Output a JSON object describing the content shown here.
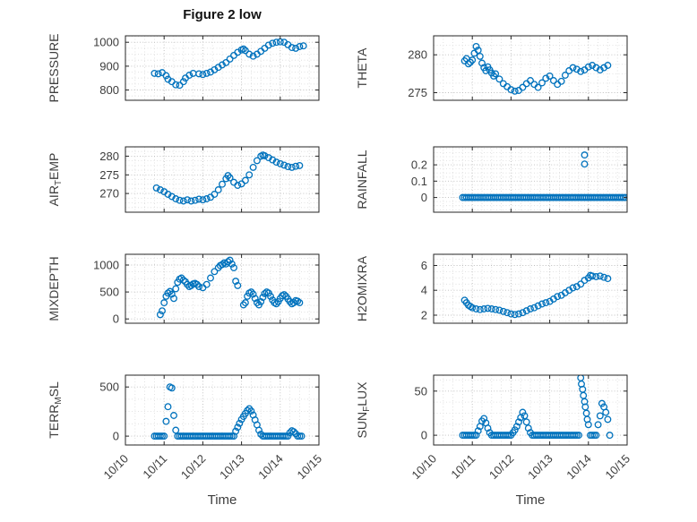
{
  "title": "Figure 2 low",
  "xlabel": "Time",
  "x_ticks": [
    0,
    1,
    2,
    3,
    4,
    5
  ],
  "x_tick_labels": [
    "10/10",
    "10/11",
    "10/12",
    "10/13",
    "10/14",
    "10/15"
  ],
  "xlim": [
    0,
    5
  ],
  "style": {
    "marker_color": "#0072BD",
    "axis_color": "#262626",
    "grid_color": "#bdbdbd",
    "minor_grid_color": "#dadada",
    "text_color": "#3d3d3d"
  },
  "chart_data": [
    {
      "name": "PRESSURE",
      "type": "scatter",
      "ylabel": [
        {
          "t": "PRESSURE"
        }
      ],
      "ylim": [
        757,
        1027
      ],
      "yticks": [
        800,
        900,
        1000
      ],
      "x": [
        0.75,
        0.85,
        0.95,
        1.05,
        1.1,
        1.2,
        1.3,
        1.4,
        1.5,
        1.55,
        1.65,
        1.75,
        1.9,
        2,
        2.1,
        2.2,
        2.3,
        2.4,
        2.5,
        2.6,
        2.7,
        2.8,
        2.9,
        3,
        3.05,
        3.1,
        3.2,
        3.3,
        3.4,
        3.5,
        3.6,
        3.7,
        3.8,
        3.9,
        4,
        4.1,
        4.2,
        4.3,
        4.4,
        4.5,
        4.6
      ],
      "y": [
        870,
        868,
        873,
        860,
        845,
        835,
        822,
        820,
        835,
        850,
        862,
        870,
        868,
        865,
        870,
        875,
        885,
        895,
        905,
        915,
        930,
        945,
        958,
        968,
        972,
        965,
        950,
        942,
        950,
        962,
        975,
        988,
        996,
        1000,
        1002,
        1000,
        990,
        978,
        975,
        982,
        985
      ]
    },
    {
      "name": "THETA",
      "type": "scatter",
      "ylabel": [
        {
          "t": "THETA"
        }
      ],
      "ylim": [
        274,
        282.5
      ],
      "yticks": [
        275,
        280
      ],
      "x": [
        0.8,
        0.85,
        0.9,
        0.95,
        1,
        1.05,
        1.1,
        1.15,
        1.2,
        1.25,
        1.3,
        1.35,
        1.4,
        1.45,
        1.5,
        1.55,
        1.6,
        1.7,
        1.8,
        1.9,
        2,
        2.1,
        2.2,
        2.3,
        2.4,
        2.5,
        2.6,
        2.7,
        2.8,
        2.9,
        3,
        3.1,
        3.2,
        3.3,
        3.4,
        3.5,
        3.6,
        3.7,
        3.8,
        3.9,
        4,
        4.1,
        4.2,
        4.3,
        4.4,
        4.5
      ],
      "y": [
        279.2,
        279.5,
        278.8,
        279,
        279.3,
        280.2,
        281.1,
        280.6,
        279.8,
        278.9,
        278.3,
        277.9,
        278.4,
        278,
        277.6,
        277.2,
        277.5,
        276.8,
        276.2,
        275.8,
        275.4,
        275.2,
        275.3,
        275.7,
        276.2,
        276.6,
        276.1,
        275.7,
        276.3,
        276.9,
        277.2,
        276.6,
        276.1,
        276.5,
        277.3,
        277.9,
        278.3,
        278.1,
        277.8,
        278,
        278.4,
        278.6,
        278.3,
        278,
        278.3,
        278.6
      ]
    },
    {
      "name": "AIR_TEMP",
      "type": "scatter",
      "ylabel": [
        {
          "t": "AIR"
        },
        {
          "t": "T",
          "sub": true
        },
        {
          "t": "EMP"
        }
      ],
      "ylim": [
        265,
        282.5
      ],
      "yticks": [
        270,
        275,
        280
      ],
      "x": [
        0.8,
        0.9,
        1,
        1.1,
        1.2,
        1.3,
        1.4,
        1.5,
        1.6,
        1.7,
        1.8,
        1.9,
        2,
        2.1,
        2.2,
        2.3,
        2.4,
        2.5,
        2.6,
        2.65,
        2.7,
        2.8,
        2.9,
        3,
        3.1,
        3.2,
        3.3,
        3.4,
        3.5,
        3.55,
        3.6,
        3.7,
        3.8,
        3.9,
        4,
        4.1,
        4.2,
        4.3,
        4.4,
        4.5
      ],
      "y": [
        271.5,
        271,
        270.5,
        269.8,
        269.2,
        268.6,
        268.2,
        268,
        268.3,
        268,
        268.2,
        268.5,
        268.3,
        268.6,
        269,
        269.8,
        271,
        272.5,
        274,
        274.8,
        274.2,
        273,
        272.2,
        272.6,
        273.5,
        275,
        277,
        278.8,
        280,
        280.3,
        280.1,
        279.6,
        279,
        278.4,
        278,
        277.6,
        277.2,
        277,
        277.3,
        277.5
      ]
    },
    {
      "name": "RAINFALL",
      "type": "scatter",
      "ylabel": [
        {
          "t": "RAINFALL"
        }
      ],
      "ylim": [
        -0.09,
        0.31
      ],
      "yticks": [
        0,
        0.1,
        0.2
      ],
      "x": [
        0.75,
        0.8,
        0.85,
        0.9,
        0.95,
        1,
        1.05,
        1.1,
        1.15,
        1.2,
        1.25,
        1.3,
        1.35,
        1.4,
        1.45,
        1.5,
        1.55,
        1.6,
        1.65,
        1.7,
        1.75,
        1.8,
        1.85,
        1.9,
        1.95,
        2,
        2.05,
        2.1,
        2.15,
        2.2,
        2.25,
        2.3,
        2.35,
        2.4,
        2.45,
        2.5,
        2.55,
        2.6,
        2.65,
        2.7,
        2.75,
        2.8,
        2.85,
        2.9,
        2.95,
        3,
        3.05,
        3.1,
        3.15,
        3.2,
        3.25,
        3.3,
        3.35,
        3.4,
        3.45,
        3.5,
        3.55,
        3.6,
        3.65,
        3.7,
        3.75,
        3.8,
        3.85,
        3.9,
        3.95,
        4,
        4.05,
        4.1,
        4.15,
        4.2,
        4.25,
        4.3,
        4.35,
        4.4,
        4.45,
        4.5,
        4.55,
        4.6,
        4.65,
        4.7,
        4.75,
        4.8,
        4.85,
        4.9,
        4.95,
        3.9,
        3.9
      ],
      "y": [
        0,
        0,
        0,
        0,
        0,
        0,
        0,
        0,
        0,
        0,
        0,
        0,
        0,
        0,
        0,
        0,
        0,
        0,
        0,
        0,
        0,
        0,
        0,
        0,
        0,
        0,
        0,
        0,
        0,
        0,
        0,
        0,
        0,
        0,
        0,
        0,
        0,
        0,
        0,
        0,
        0,
        0,
        0,
        0,
        0,
        0,
        0,
        0,
        0,
        0,
        0,
        0,
        0,
        0,
        0,
        0,
        0,
        0,
        0,
        0,
        0,
        0,
        0,
        0,
        0,
        0,
        0,
        0,
        0,
        0,
        0,
        0,
        0,
        0,
        0,
        0,
        0,
        0,
        0,
        0,
        0,
        0,
        0,
        0,
        0,
        0.26,
        0.205
      ]
    },
    {
      "name": "MIXDEPTH",
      "type": "scatter",
      "ylabel": [
        {
          "t": "MIXDEPTH"
        }
      ],
      "ylim": [
        -80,
        1200
      ],
      "yticks": [
        0,
        500,
        1000
      ],
      "x": [
        0.9,
        0.95,
        1,
        1.05,
        1.1,
        1.15,
        1.2,
        1.25,
        1.3,
        1.35,
        1.4,
        1.45,
        1.5,
        1.55,
        1.6,
        1.65,
        1.7,
        1.75,
        1.8,
        1.85,
        1.9,
        2,
        2.1,
        2.2,
        2.3,
        2.4,
        2.45,
        2.5,
        2.55,
        2.6,
        2.65,
        2.7,
        2.75,
        2.8,
        2.85,
        2.9,
        3.05,
        3.1,
        3.15,
        3.2,
        3.25,
        3.3,
        3.35,
        3.4,
        3.45,
        3.5,
        3.55,
        3.6,
        3.65,
        3.7,
        3.75,
        3.8,
        3.85,
        3.9,
        3.95,
        4,
        4.05,
        4.1,
        4.15,
        4.2,
        4.25,
        4.3,
        4.35,
        4.4,
        4.45,
        4.5
      ],
      "y": [
        80,
        150,
        300,
        420,
        480,
        510,
        460,
        380,
        560,
        680,
        740,
        760,
        720,
        690,
        640,
        600,
        620,
        650,
        660,
        640,
        600,
        580,
        640,
        760,
        880,
        950,
        990,
        1010,
        1040,
        1020,
        1060,
        1090,
        1020,
        950,
        700,
        620,
        260,
        300,
        420,
        480,
        500,
        460,
        380,
        300,
        260,
        320,
        400,
        470,
        500,
        480,
        420,
        350,
        300,
        280,
        320,
        380,
        430,
        450,
        420,
        370,
        320,
        280,
        300,
        340,
        330,
        300
      ]
    },
    {
      "name": "H2OMIXRA",
      "type": "scatter",
      "ylabel": [
        {
          "t": "H2OMIXRA"
        }
      ],
      "ylim": [
        1.35,
        6.9
      ],
      "yticks": [
        2,
        4,
        6
      ],
      "x": [
        0.8,
        0.85,
        0.9,
        0.95,
        1,
        1.1,
        1.2,
        1.3,
        1.4,
        1.5,
        1.6,
        1.7,
        1.8,
        1.9,
        2,
        2.1,
        2.2,
        2.3,
        2.4,
        2.5,
        2.6,
        2.7,
        2.8,
        2.9,
        3,
        3.1,
        3.2,
        3.3,
        3.4,
        3.5,
        3.6,
        3.7,
        3.8,
        3.9,
        4,
        4.05,
        4.1,
        4.2,
        4.3,
        4.4,
        4.5
      ],
      "y": [
        3.2,
        3,
        2.8,
        2.7,
        2.6,
        2.5,
        2.45,
        2.5,
        2.55,
        2.5,
        2.45,
        2.4,
        2.3,
        2.2,
        2.1,
        2.05,
        2.1,
        2.2,
        2.35,
        2.5,
        2.6,
        2.75,
        2.9,
        3,
        3.1,
        3.3,
        3.5,
        3.6,
        3.8,
        4,
        4.2,
        4.3,
        4.5,
        4.8,
        5,
        5.2,
        5.15,
        5.1,
        5.15,
        5.05,
        4.95
      ]
    },
    {
      "name": "TERR_MSL",
      "type": "scatter",
      "ylabel": [
        {
          "t": "TERR"
        },
        {
          "t": "M",
          "sub": true
        },
        {
          "t": "SL"
        }
      ],
      "ylim": [
        -90,
        620
      ],
      "yticks": [
        0,
        500
      ],
      "x": [
        0.75,
        0.8,
        0.85,
        0.9,
        0.95,
        1,
        1.05,
        1.1,
        1.15,
        1.2,
        1.25,
        1.3,
        1.35,
        1.4,
        1.45,
        1.5,
        1.55,
        1.6,
        1.65,
        1.7,
        1.75,
        1.8,
        1.85,
        1.9,
        1.95,
        2,
        2.05,
        2.1,
        2.15,
        2.2,
        2.25,
        2.3,
        2.35,
        2.4,
        2.45,
        2.5,
        2.55,
        2.6,
        2.65,
        2.7,
        2.75,
        2.8,
        2.85,
        2.9,
        2.95,
        3,
        3.05,
        3.1,
        3.15,
        3.2,
        3.25,
        3.3,
        3.35,
        3.4,
        3.45,
        3.5,
        3.55,
        3.6,
        3.65,
        3.7,
        3.75,
        3.8,
        3.85,
        3.9,
        3.95,
        4,
        4.05,
        4.1,
        4.15,
        4.2,
        4.25,
        4.3,
        4.35,
        4.4,
        4.45,
        4.5,
        4.55
      ],
      "y": [
        0,
        0,
        0,
        0,
        0,
        0,
        150,
        300,
        500,
        490,
        210,
        60,
        0,
        0,
        0,
        0,
        0,
        0,
        0,
        0,
        0,
        0,
        0,
        0,
        0,
        0,
        0,
        0,
        0,
        0,
        0,
        0,
        0,
        0,
        0,
        0,
        0,
        0,
        0,
        0,
        0,
        0,
        50,
        90,
        130,
        170,
        200,
        230,
        260,
        280,
        255,
        215,
        165,
        115,
        60,
        20,
        0,
        0,
        0,
        0,
        0,
        0,
        0,
        0,
        0,
        0,
        0,
        0,
        0,
        0,
        35,
        55,
        45,
        25,
        0,
        0,
        0
      ]
    },
    {
      "name": "SUN_FLUX",
      "type": "scatter",
      "ylabel": [
        {
          "t": "SUN"
        },
        {
          "t": "F",
          "sub": true
        },
        {
          "t": "LUX"
        }
      ],
      "ylim": [
        -11,
        68
      ],
      "yticks": [
        0,
        50
      ],
      "x": [
        0.75,
        0.8,
        0.85,
        0.9,
        0.95,
        1,
        1.05,
        1.1,
        1.15,
        1.2,
        1.25,
        1.3,
        1.35,
        1.4,
        1.45,
        1.5,
        1.55,
        1.6,
        1.65,
        1.7,
        1.75,
        1.8,
        1.85,
        1.9,
        1.95,
        2,
        2.05,
        2.1,
        2.15,
        2.2,
        2.25,
        2.3,
        2.35,
        2.4,
        2.45,
        2.5,
        2.55,
        2.6,
        2.65,
        2.7,
        2.75,
        2.8,
        2.85,
        2.9,
        2.95,
        3,
        3.05,
        3.1,
        3.15,
        3.2,
        3.25,
        3.3,
        3.35,
        3.4,
        3.45,
        3.5,
        3.55,
        3.6,
        3.65,
        3.7,
        3.75,
        3.8,
        3.82,
        3.85,
        3.87,
        3.9,
        3.92,
        3.95,
        3.97,
        4,
        4.05,
        4.1,
        4.15,
        4.2,
        4.25,
        4.3,
        4.35,
        4.4,
        4.45,
        4.5,
        4.55
      ],
      "y": [
        0,
        0,
        0,
        0,
        0,
        0,
        0,
        0,
        5,
        10,
        16,
        19,
        14,
        8,
        3,
        0,
        0,
        0,
        0,
        0,
        0,
        0,
        0,
        0,
        0,
        0,
        3,
        6,
        10,
        15,
        20,
        26,
        22,
        15,
        8,
        3,
        0,
        0,
        0,
        0,
        0,
        0,
        0,
        0,
        0,
        0,
        0,
        0,
        0,
        0,
        0,
        0,
        0,
        0,
        0,
        0,
        0,
        0,
        0,
        0,
        0,
        65,
        58,
        52,
        45,
        38,
        32,
        25,
        18,
        12,
        0,
        0,
        0,
        0,
        12,
        22,
        36,
        32,
        26,
        18,
        0
      ]
    }
  ]
}
